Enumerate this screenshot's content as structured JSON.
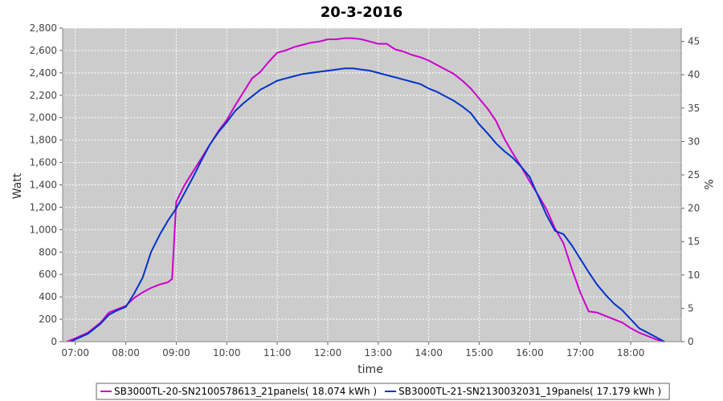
{
  "chart_data": {
    "type": "line",
    "title": "20-3-2016",
    "xlabel": "time",
    "ylabel": "Watt",
    "y2label": "%",
    "xlim": [
      "06:45",
      "19:00"
    ],
    "ylim": [
      0,
      2800
    ],
    "y2lim": [
      0,
      47
    ],
    "grid": true,
    "legend_position": "bottom",
    "x_ticks": [
      "07:00",
      "08:00",
      "09:00",
      "10:00",
      "11:00",
      "12:00",
      "13:00",
      "14:00",
      "15:00",
      "16:00",
      "17:00",
      "18:00"
    ],
    "y_ticks": [
      "0",
      "200",
      "400",
      "600",
      "800",
      "1,000",
      "1,200",
      "1,400",
      "1,600",
      "1,800",
      "2,000",
      "2,200",
      "2,400",
      "2,600",
      "2,800"
    ],
    "y2_ticks": [
      "0",
      "5",
      "10",
      "15",
      "20",
      "25",
      "30",
      "35",
      "40",
      "45"
    ],
    "series": [
      {
        "name": "SB3000TL-20-SN2100578613_21panels( 18.074 kWh )",
        "color": "#cc00cc",
        "points": [
          [
            "06:50",
            0
          ],
          [
            "07:00",
            30
          ],
          [
            "07:15",
            80
          ],
          [
            "07:30",
            170
          ],
          [
            "07:40",
            260
          ],
          [
            "07:50",
            290
          ],
          [
            "08:00",
            320
          ],
          [
            "08:10",
            390
          ],
          [
            "08:20",
            440
          ],
          [
            "08:30",
            480
          ],
          [
            "08:40",
            510
          ],
          [
            "08:50",
            530
          ],
          [
            "08:55",
            560
          ],
          [
            "09:00",
            1250
          ],
          [
            "09:10",
            1400
          ],
          [
            "09:20",
            1520
          ],
          [
            "09:30",
            1640
          ],
          [
            "09:40",
            1760
          ],
          [
            "09:50",
            1880
          ],
          [
            "10:00",
            1980
          ],
          [
            "10:10",
            2110
          ],
          [
            "10:20",
            2230
          ],
          [
            "10:30",
            2350
          ],
          [
            "10:40",
            2410
          ],
          [
            "10:50",
            2500
          ],
          [
            "11:00",
            2580
          ],
          [
            "11:10",
            2600
          ],
          [
            "11:20",
            2630
          ],
          [
            "11:30",
            2650
          ],
          [
            "11:40",
            2670
          ],
          [
            "11:50",
            2680
          ],
          [
            "12:00",
            2700
          ],
          [
            "12:10",
            2700
          ],
          [
            "12:20",
            2710
          ],
          [
            "12:30",
            2710
          ],
          [
            "12:40",
            2700
          ],
          [
            "12:50",
            2680
          ],
          [
            "13:00",
            2660
          ],
          [
            "13:10",
            2660
          ],
          [
            "13:20",
            2610
          ],
          [
            "13:30",
            2590
          ],
          [
            "13:40",
            2560
          ],
          [
            "13:50",
            2540
          ],
          [
            "14:00",
            2510
          ],
          [
            "14:10",
            2470
          ],
          [
            "14:20",
            2430
          ],
          [
            "14:30",
            2390
          ],
          [
            "14:40",
            2330
          ],
          [
            "14:50",
            2260
          ],
          [
            "15:00",
            2170
          ],
          [
            "15:10",
            2080
          ],
          [
            "15:20",
            1970
          ],
          [
            "15:30",
            1810
          ],
          [
            "15:40",
            1680
          ],
          [
            "15:50",
            1560
          ],
          [
            "16:00",
            1430
          ],
          [
            "16:10",
            1310
          ],
          [
            "16:20",
            1180
          ],
          [
            "16:30",
            1010
          ],
          [
            "16:40",
            880
          ],
          [
            "16:50",
            650
          ],
          [
            "17:00",
            440
          ],
          [
            "17:10",
            270
          ],
          [
            "17:20",
            260
          ],
          [
            "17:30",
            230
          ],
          [
            "17:40",
            200
          ],
          [
            "17:50",
            170
          ],
          [
            "18:00",
            120
          ],
          [
            "18:10",
            80
          ],
          [
            "18:20",
            50
          ],
          [
            "18:30",
            20
          ],
          [
            "18:40",
            0
          ]
        ]
      },
      {
        "name": "SB3000TL-21-SN2130032031_19panels( 17.179 kWh )",
        "color": "#0033cc",
        "points": [
          [
            "06:55",
            0
          ],
          [
            "07:00",
            20
          ],
          [
            "07:15",
            70
          ],
          [
            "07:30",
            160
          ],
          [
            "07:40",
            240
          ],
          [
            "07:50",
            280
          ],
          [
            "08:00",
            310
          ],
          [
            "08:10",
            430
          ],
          [
            "08:20",
            570
          ],
          [
            "08:30",
            800
          ],
          [
            "08:40",
            950
          ],
          [
            "08:50",
            1080
          ],
          [
            "09:00",
            1190
          ],
          [
            "09:10",
            1330
          ],
          [
            "09:20",
            1470
          ],
          [
            "09:30",
            1620
          ],
          [
            "09:40",
            1760
          ],
          [
            "09:50",
            1870
          ],
          [
            "10:00",
            1960
          ],
          [
            "10:10",
            2060
          ],
          [
            "10:20",
            2130
          ],
          [
            "10:30",
            2190
          ],
          [
            "10:40",
            2250
          ],
          [
            "10:50",
            2290
          ],
          [
            "11:00",
            2330
          ],
          [
            "11:10",
            2350
          ],
          [
            "11:20",
            2370
          ],
          [
            "11:30",
            2390
          ],
          [
            "11:40",
            2400
          ],
          [
            "11:50",
            2410
          ],
          [
            "12:00",
            2420
          ],
          [
            "12:10",
            2430
          ],
          [
            "12:20",
            2440
          ],
          [
            "12:30",
            2440
          ],
          [
            "12:40",
            2430
          ],
          [
            "12:50",
            2420
          ],
          [
            "13:00",
            2400
          ],
          [
            "13:10",
            2380
          ],
          [
            "13:20",
            2360
          ],
          [
            "13:30",
            2340
          ],
          [
            "13:40",
            2320
          ],
          [
            "13:50",
            2300
          ],
          [
            "14:00",
            2260
          ],
          [
            "14:10",
            2230
          ],
          [
            "14:20",
            2190
          ],
          [
            "14:30",
            2150
          ],
          [
            "14:40",
            2100
          ],
          [
            "14:50",
            2040
          ],
          [
            "15:00",
            1940
          ],
          [
            "15:10",
            1860
          ],
          [
            "15:20",
            1770
          ],
          [
            "15:30",
            1700
          ],
          [
            "15:40",
            1640
          ],
          [
            "15:50",
            1560
          ],
          [
            "16:00",
            1470
          ],
          [
            "16:10",
            1300
          ],
          [
            "16:20",
            1130
          ],
          [
            "16:30",
            990
          ],
          [
            "16:40",
            960
          ],
          [
            "16:50",
            860
          ],
          [
            "17:00",
            740
          ],
          [
            "17:10",
            620
          ],
          [
            "17:20",
            510
          ],
          [
            "17:30",
            420
          ],
          [
            "17:40",
            340
          ],
          [
            "17:50",
            280
          ],
          [
            "18:00",
            200
          ],
          [
            "18:10",
            120
          ],
          [
            "18:20",
            80
          ],
          [
            "18:30",
            40
          ],
          [
            "18:40",
            0
          ]
        ]
      }
    ]
  }
}
